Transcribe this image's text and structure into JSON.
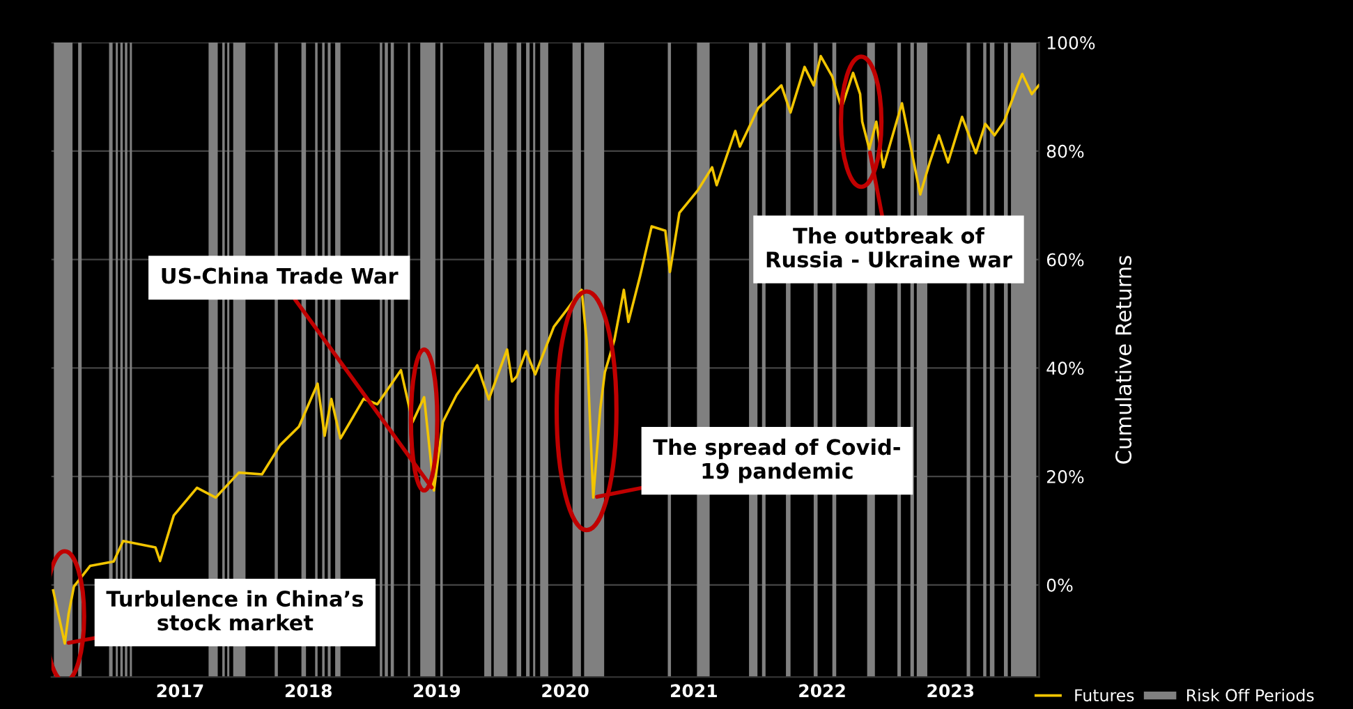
{
  "chart_data": {
    "type": "line",
    "ylabel": "Cumulative Returns",
    "x": [
      "2016-01-06",
      "2016-02-08",
      "2016-02-19",
      "2016-03-05",
      "2016-04-20",
      "2016-06-26",
      "2016-07-23",
      "2016-10-23",
      "2016-11-05",
      "2016-12-14",
      "2017-02-18",
      "2017-04-12",
      "2017-06-17",
      "2017-08-22",
      "2017-10-13",
      "2017-12-05",
      "2018-01-27",
      "2018-02-16",
      "2018-03-07",
      "2018-04-02",
      "2018-06-07",
      "2018-07-16",
      "2018-09-21",
      "2018-10-24",
      "2018-11-26",
      "2018-12-24",
      "2019-01-18",
      "2019-02-26",
      "2019-04-26",
      "2019-05-29",
      "2019-07-20",
      "2019-08-03",
      "2019-08-16",
      "2019-09-12",
      "2019-10-08",
      "2019-11-30",
      "2020-01-09",
      "2020-02-17",
      "2020-03-02",
      "2020-03-21",
      "2020-04-10",
      "2020-04-23",
      "2020-05-20",
      "2020-06-16",
      "2020-06-29",
      "2020-08-01",
      "2020-09-03",
      "2020-10-12",
      "2020-10-25",
      "2020-11-21",
      "2021-01-13",
      "2021-02-22",
      "2021-03-07",
      "2021-04-29",
      "2021-05-12",
      "2021-07-03",
      "2021-09-07",
      "2021-10-03",
      "2021-11-12",
      "2021-12-08",
      "2021-12-28",
      "2022-01-30",
      "2022-02-25",
      "2022-03-30",
      "2022-04-19",
      "2022-04-25",
      "2022-05-15",
      "2022-06-04",
      "2022-06-24",
      "2022-08-16",
      "2022-09-11",
      "2022-10-07",
      "2022-11-03",
      "2022-11-29",
      "2022-12-25",
      "2023-02-03",
      "2023-03-14",
      "2023-04-10",
      "2023-05-06",
      "2023-06-02",
      "2023-07-11",
      "2023-07-24",
      "2023-08-20",
      "2023-09-09"
    ],
    "series": [
      {
        "name": "Futures",
        "color": "#f2c500",
        "values": [
          -1,
          -10.8,
          -5.3,
          -0.3,
          3.5,
          4.3,
          8.1,
          6.9,
          4.4,
          12.8,
          17.9,
          16.1,
          20.7,
          20.4,
          25.8,
          29.2,
          37.1,
          27.5,
          34.3,
          27,
          34.3,
          33.3,
          39.6,
          30,
          34.6,
          17.4,
          30,
          35,
          40.5,
          34.2,
          43.4,
          37.5,
          38.4,
          43.1,
          38.8,
          47.6,
          51,
          54.4,
          45.1,
          16.1,
          32.5,
          39.2,
          45.1,
          54.4,
          48.5,
          56.9,
          66.1,
          65.3,
          57.7,
          68.6,
          72.8,
          77,
          73.7,
          83.7,
          80.8,
          87.9,
          92.1,
          87.1,
          95.5,
          92.1,
          97.5,
          93.7,
          87.9,
          94.4,
          90.5,
          85.4,
          80.4,
          85.4,
          77,
          88.8,
          80.4,
          72,
          77.9,
          82.9,
          77.9,
          86.3,
          79.6,
          85,
          82.9,
          85.4,
          92.1,
          94.2,
          90.5,
          92.1
        ]
      }
    ],
    "xlim": [
      "2016-01-01",
      "2023-09-10"
    ],
    "xticks": [
      {
        "value": "2017-01-01",
        "label": "2017"
      },
      {
        "value": "2018-01-01",
        "label": "2018"
      },
      {
        "value": "2019-01-01",
        "label": "2019"
      },
      {
        "value": "2020-01-01",
        "label": "2020"
      },
      {
        "value": "2021-01-01",
        "label": "2021"
      },
      {
        "value": "2022-01-01",
        "label": "2022"
      },
      {
        "value": "2023-01-01",
        "label": "2023"
      }
    ],
    "ylim": [
      -17,
      100
    ],
    "yticks": [
      {
        "value": 0,
        "label": "0%"
      },
      {
        "value": 20,
        "label": "20%"
      },
      {
        "value": 40,
        "label": "40%"
      },
      {
        "value": 60,
        "label": "60%"
      },
      {
        "value": 80,
        "label": "80%"
      },
      {
        "value": 100,
        "label": "100%"
      }
    ],
    "grid": "y",
    "legend": "bottom right",
    "bands": [
      {
        "axis": "x",
        "from": "2016-01-08",
        "to": "2016-03-01",
        "label": "Risk Off Periods",
        "color": "#808080"
      },
      {
        "axis": "x",
        "from": "2016-03-17",
        "to": "2016-03-27",
        "color": "#808080"
      },
      {
        "axis": "x",
        "from": "2016-06-13",
        "to": "2016-06-23",
        "color": "#808080"
      },
      {
        "axis": "x",
        "from": "2016-07-02",
        "to": "2016-07-08",
        "color": "#808080"
      },
      {
        "axis": "x",
        "from": "2016-07-15",
        "to": "2016-07-22",
        "color": "#808080"
      },
      {
        "axis": "x",
        "from": "2016-07-28",
        "to": "2016-08-04",
        "color": "#808080"
      },
      {
        "axis": "x",
        "from": "2016-08-11",
        "to": "2016-08-17",
        "color": "#808080"
      },
      {
        "axis": "x",
        "from": "2017-03-23",
        "to": "2017-04-18",
        "color": "#808080"
      },
      {
        "axis": "x",
        "from": "2017-05-01",
        "to": "2017-05-08",
        "color": "#808080"
      },
      {
        "axis": "x",
        "from": "2017-05-15",
        "to": "2017-05-21",
        "color": "#808080"
      },
      {
        "axis": "x",
        "from": "2017-06-01",
        "to": "2017-07-06",
        "color": "#808080"
      },
      {
        "axis": "x",
        "from": "2017-09-27",
        "to": "2017-10-06",
        "color": "#808080"
      },
      {
        "axis": "x",
        "from": "2017-12-12",
        "to": "2017-12-25",
        "color": "#808080"
      },
      {
        "axis": "x",
        "from": "2018-01-20",
        "to": "2018-01-27",
        "color": "#808080"
      },
      {
        "axis": "x",
        "from": "2018-02-09",
        "to": "2018-02-16",
        "color": "#808080"
      },
      {
        "axis": "x",
        "from": "2018-02-25",
        "to": "2018-03-05",
        "color": "#808080"
      },
      {
        "axis": "x",
        "from": "2018-03-18",
        "to": "2018-04-02",
        "color": "#808080"
      },
      {
        "axis": "x",
        "from": "2018-07-23",
        "to": "2018-07-30",
        "color": "#808080"
      },
      {
        "axis": "x",
        "from": "2018-08-06",
        "to": "2018-08-15",
        "color": "#808080"
      },
      {
        "axis": "x",
        "from": "2018-08-23",
        "to": "2018-09-01",
        "color": "#808080"
      },
      {
        "axis": "x",
        "from": "2018-10-11",
        "to": "2018-10-17",
        "color": "#808080"
      },
      {
        "axis": "x",
        "from": "2018-11-15",
        "to": "2018-12-28",
        "color": "#808080"
      },
      {
        "axis": "x",
        "from": "2019-01-11",
        "to": "2019-01-18",
        "color": "#808080"
      },
      {
        "axis": "x",
        "from": "2019-05-16",
        "to": "2019-06-05",
        "color": "#808080"
      },
      {
        "axis": "x",
        "from": "2019-06-12",
        "to": "2019-07-21",
        "color": "#808080"
      },
      {
        "axis": "x",
        "from": "2019-08-16",
        "to": "2019-08-29",
        "color": "#808080"
      },
      {
        "axis": "x",
        "from": "2019-09-12",
        "to": "2019-09-22",
        "color": "#808080"
      },
      {
        "axis": "x",
        "from": "2019-10-02",
        "to": "2019-10-08",
        "color": "#808080"
      },
      {
        "axis": "x",
        "from": "2019-10-22",
        "to": "2019-11-14",
        "color": "#808080"
      },
      {
        "axis": "x",
        "from": "2020-01-22",
        "to": "2020-02-15",
        "color": "#808080"
      },
      {
        "axis": "x",
        "from": "2020-02-24",
        "to": "2020-04-21",
        "color": "#808080"
      },
      {
        "axis": "x",
        "from": "2020-10-19",
        "to": "2020-10-28",
        "color": "#808080"
      },
      {
        "axis": "x",
        "from": "2021-01-10",
        "to": "2021-02-15",
        "color": "#808080"
      },
      {
        "axis": "x",
        "from": "2021-06-07",
        "to": "2021-07-01",
        "color": "#808080"
      },
      {
        "axis": "x",
        "from": "2021-07-14",
        "to": "2021-07-24",
        "color": "#808080"
      },
      {
        "axis": "x",
        "from": "2021-09-20",
        "to": "2021-10-03",
        "color": "#808080"
      },
      {
        "axis": "x",
        "from": "2021-12-08",
        "to": "2021-12-19",
        "color": "#808080"
      },
      {
        "axis": "x",
        "from": "2022-01-30",
        "to": "2022-02-10",
        "color": "#808080"
      },
      {
        "axis": "x",
        "from": "2022-05-09",
        "to": "2022-05-31",
        "color": "#808080"
      },
      {
        "axis": "x",
        "from": "2022-08-03",
        "to": "2022-08-13",
        "color": "#808080"
      },
      {
        "axis": "x",
        "from": "2022-09-09",
        "to": "2022-09-19",
        "color": "#808080"
      },
      {
        "axis": "x",
        "from": "2022-09-27",
        "to": "2022-10-27",
        "color": "#808080"
      },
      {
        "axis": "x",
        "from": "2023-02-16",
        "to": "2023-02-26",
        "color": "#808080"
      },
      {
        "axis": "x",
        "from": "2023-04-04",
        "to": "2023-04-13",
        "color": "#808080"
      },
      {
        "axis": "x",
        "from": "2023-04-23",
        "to": "2023-05-06",
        "color": "#808080"
      },
      {
        "axis": "x",
        "from": "2023-06-02",
        "to": "2023-06-13",
        "color": "#808080"
      },
      {
        "axis": "x",
        "from": "2023-06-22",
        "to": "2023-09-02",
        "color": "#808080"
      }
    ],
    "annotations": [
      {
        "text": "Turbulence in China’s\nstock market",
        "x": "2016-02-08",
        "y": -10.8
      },
      {
        "text": "US-China Trade War",
        "x": "2018-12-24",
        "y": 17.4
      },
      {
        "text": "The spread of Covid-\n19 pandemic",
        "x": "2020-03-21",
        "y": 16.1
      },
      {
        "text": "The outbreak of\nRussia - Ukraine war",
        "x": "2022-05-15",
        "y": 80.4
      }
    ]
  }
}
